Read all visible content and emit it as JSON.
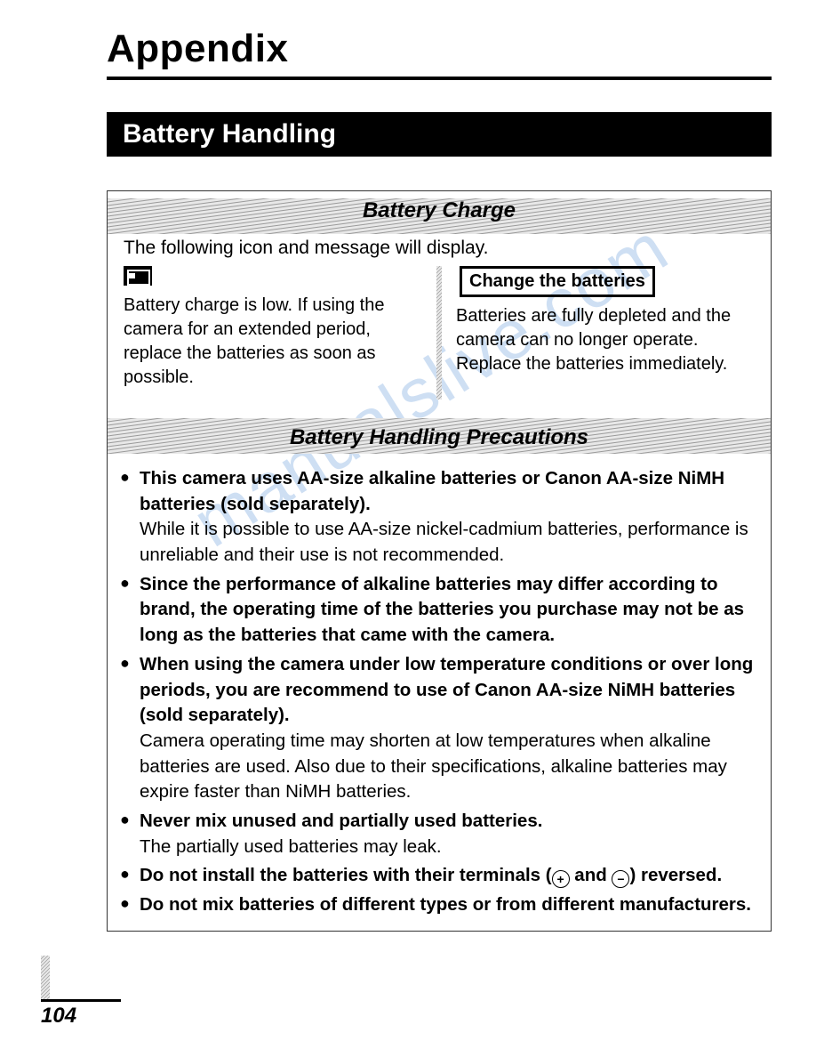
{
  "title": "Appendix",
  "section_heading": "Battery Handling",
  "watermark_text": "manualslive.com",
  "page_number": "104",
  "hatch_pattern_color": "#9a9a9a",
  "hatch_bg_color": "#e8e8e8",
  "charge_box": {
    "header": "Battery Charge",
    "lead": "The following icon and message will display.",
    "left_text": "Battery charge is low. If using the camera for an extended period, replace the batteries as soon as possible.",
    "right_box_label": "Change the batteries",
    "right_text": "Batteries are fully depleted and the camera can no longer operate. Replace the batteries immediately."
  },
  "precautions_box": {
    "header": "Battery Handling Precautions",
    "items": [
      {
        "bold": "This camera uses AA-size alkaline batteries or Canon AA-size NiMH batteries (sold separately).",
        "sub": "While it is possible to use AA-size nickel-cadmium batteries, performance is unreliable and their use is not recommended."
      },
      {
        "bold": "Since the performance of alkaline batteries may differ according to brand, the operating time of the batteries you purchase may not be as long as the batteries that came with the camera.",
        "sub": ""
      },
      {
        "bold": "When using the camera under low temperature conditions or over long periods, you are recommend to use of Canon AA-size NiMH batteries (sold separately).",
        "sub": "Camera operating time may shorten at low temperatures when alkaline batteries are used. Also due to their specifications, alkaline batteries may expire faster than NiMH batteries."
      },
      {
        "bold": "Never mix unused and partially used batteries.",
        "sub": "The partially used batteries may leak."
      },
      {
        "bold_pre": "Do not install the batteries with their terminals (",
        "bold_mid": " and ",
        "bold_post": ") reversed.",
        "terminals": true
      },
      {
        "bold": "Do not mix batteries of different types or from different manufacturers.",
        "sub": ""
      }
    ]
  }
}
